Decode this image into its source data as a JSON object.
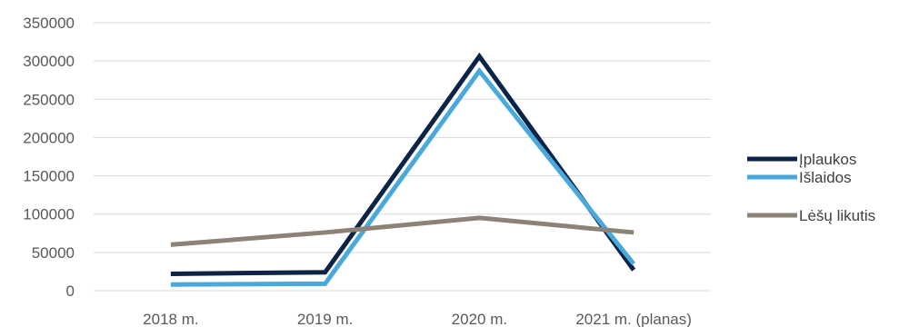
{
  "chart_data": {
    "type": "line",
    "categories": [
      "2018 m.",
      "2019 m.",
      "2020 m.",
      "2021 m. (planas)"
    ],
    "series": [
      {
        "name": "Įplaukos",
        "values": [
          22000,
          24000,
          306000,
          27000
        ],
        "color": "#0b2346"
      },
      {
        "name": "Išlaidos",
        "values": [
          8000,
          9000,
          287000,
          35000
        ],
        "color": "#4aa9db"
      },
      {
        "name": "Lėšų likutis",
        "values": [
          60000,
          76000,
          95000,
          76000
        ],
        "color": "#8c8276"
      }
    ],
    "y_ticks": [
      "0",
      "50000",
      "100000",
      "150000",
      "200000",
      "250000",
      "300000",
      "350000"
    ],
    "ylim": [
      0,
      350000
    ],
    "grid": true,
    "legend_position": "right"
  }
}
